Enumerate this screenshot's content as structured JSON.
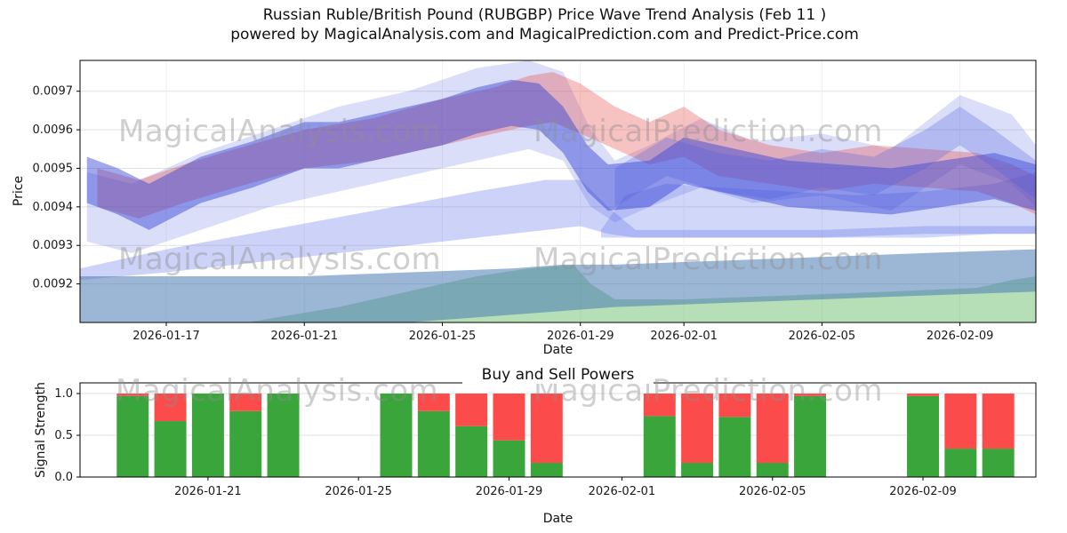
{
  "header": {
    "title_line1": "Russian Ruble/British Pound (RUBGBP) Price Wave Trend Analysis (Feb 11 )",
    "title_line2": "powered by MagicalAnalysis.com and MagicalPrediction.com and Predict-Price.com"
  },
  "watermark": {
    "analysis": "MagicalAnalysis.com",
    "prediction": "MagicalPrediction.com"
  },
  "chart_data": [
    {
      "name": "price_wave_trend",
      "type": "area",
      "xlabel": "Date",
      "ylabel": "Price",
      "x_unit": "days_since_2026-01-15",
      "xlim_dates": [
        "2026-01-14",
        "2026-02-11"
      ],
      "ylim": [
        0.0091,
        0.00978
      ],
      "grid": true,
      "x_ticks": [
        "2026-01-17",
        "2026-01-21",
        "2026-01-25",
        "2026-01-29",
        "2026-02-01",
        "2026-02-05",
        "2026-02-09"
      ],
      "y_ticks": [
        0.0092,
        0.0093,
        0.0094,
        0.0095,
        0.0096,
        0.0097
      ],
      "bands": [
        {
          "name": "green-support",
          "color": "#5fb75f",
          "opacity": 0.45,
          "x": [
            3.0,
            5,
            7,
            9,
            11,
            12.5,
            13.8,
            14.3,
            15,
            17,
            20,
            23,
            25.5,
            26.5,
            27.2
          ],
          "lo": [
            0.009,
            0.009,
            0.009,
            0.009,
            0.009,
            0.009,
            0.009,
            0.009,
            0.009,
            0.009,
            0.009,
            0.009,
            0.009,
            0.009,
            0.009
          ],
          "hi": [
            0.00908,
            0.00911,
            0.00914,
            0.00918,
            0.00922,
            0.00924,
            0.00925,
            0.0092,
            0.00916,
            0.00916,
            0.00917,
            0.00918,
            0.00919,
            0.00921,
            0.00922
          ]
        },
        {
          "name": "steel-base",
          "color": "#4a7ab5",
          "opacity": 0.55,
          "x": [
            -0.5,
            3,
            6,
            9,
            12,
            13.5,
            15,
            18,
            21,
            24,
            27.2
          ],
          "lo": [
            0.00906,
            0.00907,
            0.00908,
            0.0091,
            0.00912,
            0.00913,
            0.00914,
            0.00915,
            0.00916,
            0.00917,
            0.00918
          ],
          "hi": [
            0.00922,
            0.00922,
            0.00922,
            0.00923,
            0.00924,
            0.00925,
            0.00925,
            0.00926,
            0.00927,
            0.00928,
            0.00929
          ]
        },
        {
          "name": "blue-wedge",
          "color": "#5b6ee8",
          "opacity": 0.3,
          "x": [
            -0.5,
            2,
            5,
            8,
            11,
            13,
            14.0,
            14.8,
            15.6,
            18,
            21,
            24,
            27.2
          ],
          "lo": [
            0.00921,
            0.00923,
            0.00926,
            0.00929,
            0.00932,
            0.00934,
            0.00935,
            0.00933,
            0.00932,
            0.00932,
            0.00932,
            0.00933,
            0.00933
          ],
          "hi": [
            0.00924,
            0.00929,
            0.00934,
            0.00939,
            0.00944,
            0.00947,
            0.00947,
            0.0094,
            0.00934,
            0.00934,
            0.00934,
            0.00935,
            0.00935
          ]
        },
        {
          "name": "blue-wide-right",
          "color": "#5b6ee8",
          "opacity": 0.28,
          "x": [
            14.6,
            15.3,
            16.5,
            18,
            20,
            22,
            24,
            26,
            27.2
          ],
          "lo": [
            0.00932,
            0.00932,
            0.00932,
            0.00932,
            0.00932,
            0.00932,
            0.00932,
            0.00933,
            0.00933
          ],
          "hi": [
            0.00934,
            0.00943,
            0.00946,
            0.00945,
            0.00944,
            0.00943,
            0.00944,
            0.00946,
            0.00949
          ]
        },
        {
          "name": "blue-halo",
          "color": "#4a5ae0",
          "opacity": 0.2,
          "x": [
            -0.3,
            1,
            3,
            5,
            7,
            9,
            11,
            12.5,
            13.5,
            14.3,
            15,
            16,
            17.5,
            19,
            21,
            23,
            25,
            26.5,
            27.2
          ],
          "lo": [
            0.00931,
            0.00928,
            0.00934,
            0.0094,
            0.00944,
            0.00948,
            0.00952,
            0.00955,
            0.00952,
            0.0094,
            0.00936,
            0.0094,
            0.00945,
            0.00941,
            0.00943,
            0.00939,
            0.00951,
            0.00946,
            0.0094
          ],
          "hi": [
            0.00949,
            0.00946,
            0.00954,
            0.0096,
            0.00966,
            0.0097,
            0.00976,
            0.00978,
            0.00975,
            0.0096,
            0.00952,
            0.00956,
            0.00963,
            0.00957,
            0.00959,
            0.00955,
            0.00969,
            0.00964,
            0.00956
          ]
        },
        {
          "name": "red-wave",
          "color": "#e85050",
          "opacity": 0.35,
          "x": [
            0,
            1.2,
            2.5,
            4,
            6,
            8,
            10,
            11.5,
            12.5,
            13.2,
            14,
            15,
            16,
            17,
            18,
            19.5,
            21,
            22.5,
            24,
            25.5,
            26.5,
            27.2
          ],
          "lo": [
            0.0094,
            0.00937,
            0.00941,
            0.00945,
            0.0095,
            0.00952,
            0.00956,
            0.00959,
            0.00961,
            0.00962,
            0.00959,
            0.00955,
            0.00951,
            0.00953,
            0.00948,
            0.00946,
            0.00944,
            0.00946,
            0.00945,
            0.00944,
            0.00941,
            0.00938
          ],
          "hi": [
            0.0095,
            0.00947,
            0.00951,
            0.00955,
            0.0096,
            0.00963,
            0.00968,
            0.00971,
            0.00974,
            0.00975,
            0.00972,
            0.00966,
            0.00962,
            0.00966,
            0.0096,
            0.00956,
            0.00954,
            0.00956,
            0.00955,
            0.00954,
            0.00951,
            0.00948
          ]
        },
        {
          "name": "blue-main-wave",
          "color": "#2e3fd4",
          "opacity": 0.45,
          "x": [
            -0.3,
            0.6,
            1.5,
            3,
            4.5,
            6,
            7,
            8.5,
            10,
            11,
            12,
            12.8,
            13.5,
            14.2,
            14.8,
            16,
            17,
            18.5,
            20,
            21.5,
            23,
            24.5,
            26,
            27.2
          ],
          "lo": [
            0.00941,
            0.00938,
            0.00934,
            0.00941,
            0.00945,
            0.0095,
            0.0095,
            0.00953,
            0.00956,
            0.00959,
            0.00961,
            0.0096,
            0.00954,
            0.00944,
            0.00939,
            0.0094,
            0.00946,
            0.00943,
            0.0094,
            0.00939,
            0.00938,
            0.0094,
            0.00942,
            0.00939
          ],
          "hi": [
            0.00953,
            0.0095,
            0.00946,
            0.00953,
            0.00957,
            0.00962,
            0.00962,
            0.00965,
            0.00968,
            0.00971,
            0.00973,
            0.00972,
            0.00966,
            0.00956,
            0.00951,
            0.00952,
            0.00958,
            0.00955,
            0.00952,
            0.00951,
            0.0095,
            0.00952,
            0.00954,
            0.00951
          ]
        },
        {
          "name": "blue-right-bump",
          "color": "#4a5ae0",
          "opacity": 0.28,
          "x": [
            15,
            16.5,
            18,
            19.5,
            21,
            22.5,
            24,
            25,
            26,
            27.2
          ],
          "lo": [
            0.0094,
            0.00948,
            0.00944,
            0.00942,
            0.00945,
            0.00943,
            0.0095,
            0.00956,
            0.0095,
            0.00942
          ],
          "hi": [
            0.0095,
            0.00958,
            0.00954,
            0.00952,
            0.00955,
            0.00953,
            0.0096,
            0.00966,
            0.0096,
            0.00952
          ]
        }
      ]
    },
    {
      "name": "buy_sell_powers",
      "type": "bar",
      "title": "Buy and Sell Powers",
      "xlabel": "Date",
      "ylabel": "Signal Strength",
      "ylim": [
        0,
        1.128
      ],
      "grid": true,
      "x_ticks": [
        "2026-01-21",
        "2026-01-25",
        "2026-01-29",
        "2026-02-01",
        "2026-02-05",
        "2026-02-09"
      ],
      "y_ticks": [
        0.0,
        0.5,
        1.0
      ],
      "series_colors": {
        "buy": "#3aa53a",
        "sell": "#fb4b4b"
      },
      "bars": [
        {
          "date": "2026-01-19",
          "buy": 0.97,
          "sell": 0.03
        },
        {
          "date": "2026-01-20",
          "buy": 0.67,
          "sell": 0.33
        },
        {
          "date": "2026-01-21",
          "buy": 1.0,
          "sell": 0.0
        },
        {
          "date": "2026-01-22",
          "buy": 0.79,
          "sell": 0.21
        },
        {
          "date": "2026-01-23",
          "buy": 1.0,
          "sell": 0.0
        },
        {
          "date": "2026-01-26",
          "buy": 1.0,
          "sell": 0.0
        },
        {
          "date": "2026-01-27",
          "buy": 0.79,
          "sell": 0.21
        },
        {
          "date": "2026-01-28",
          "buy": 0.61,
          "sell": 0.39
        },
        {
          "date": "2026-01-29",
          "buy": 0.44,
          "sell": 0.56
        },
        {
          "date": "2026-01-30",
          "buy": 0.17,
          "sell": 0.83
        },
        {
          "date": "2026-02-02",
          "buy": 0.73,
          "sell": 0.27
        },
        {
          "date": "2026-02-03",
          "buy": 0.17,
          "sell": 0.83
        },
        {
          "date": "2026-02-04",
          "buy": 0.72,
          "sell": 0.28
        },
        {
          "date": "2026-02-05",
          "buy": 0.17,
          "sell": 0.83
        },
        {
          "date": "2026-02-06",
          "buy": 0.97,
          "sell": 0.03
        },
        {
          "date": "2026-02-09",
          "buy": 0.97,
          "sell": 0.03
        },
        {
          "date": "2026-02-10",
          "buy": 0.34,
          "sell": 0.66
        },
        {
          "date": "2026-02-11",
          "buy": 0.34,
          "sell": 0.66
        }
      ]
    }
  ]
}
